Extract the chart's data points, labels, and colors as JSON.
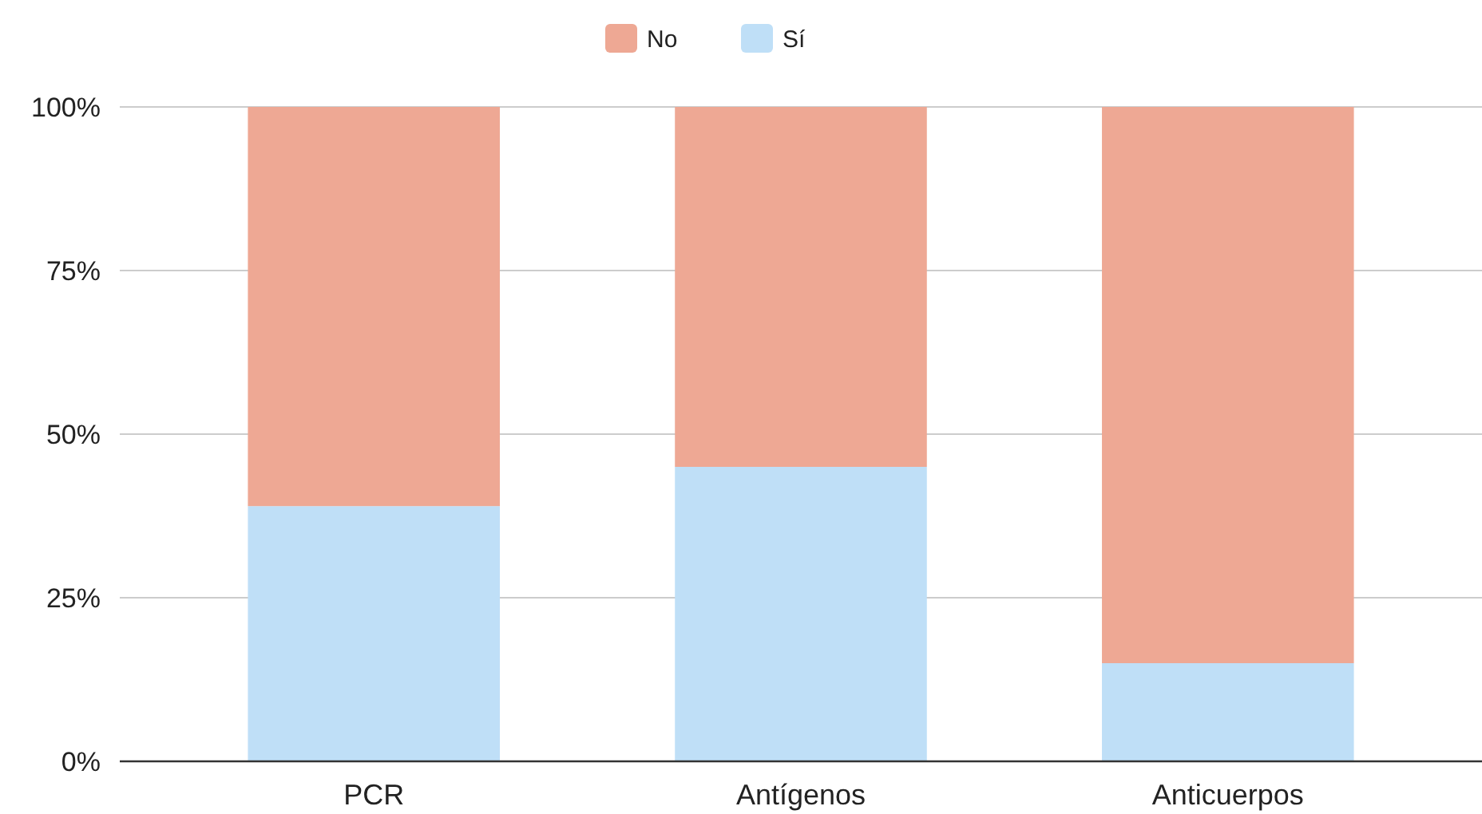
{
  "chart_data": {
    "type": "bar",
    "stacked": true,
    "categories": [
      "PCR",
      "Antígenos",
      "Anticuerpos"
    ],
    "series": [
      {
        "name": "Sí",
        "color": "#bfdff7",
        "values": [
          39,
          45,
          15
        ]
      },
      {
        "name": "No",
        "color": "#eea894",
        "values": [
          61,
          55,
          85
        ]
      }
    ],
    "ylim": [
      0,
      100
    ],
    "yticks": [
      {
        "value": 0,
        "label": "0%"
      },
      {
        "value": 25,
        "label": "25%"
      },
      {
        "value": 50,
        "label": "50%"
      },
      {
        "value": 75,
        "label": "75%"
      },
      {
        "value": 100,
        "label": "100%"
      }
    ],
    "grid": "y",
    "legend": "top"
  }
}
